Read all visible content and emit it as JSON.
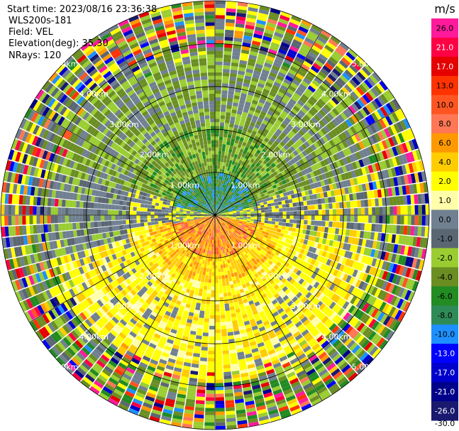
{
  "header": {
    "start_time": "Start time: 2023/08/16 23:36:38",
    "instrument": "WLS200s-181",
    "field": "Field: VEL",
    "elevation": "Elevation(deg): 35.30",
    "nrays": "NRays: 120"
  },
  "colorbar": {
    "unit": "m/s",
    "bins": [
      {
        "low": "26.0",
        "color": "#ff1a9c"
      },
      {
        "low": "21.0",
        "color": "#ff0044"
      },
      {
        "low": "17.0",
        "color": "#e60000"
      },
      {
        "low": "13.0",
        "color": "#ff3300"
      },
      {
        "low": "10.0",
        "color": "#ff5522"
      },
      {
        "low": "8.0",
        "color": "#ff7755"
      },
      {
        "low": "6.0",
        "color": "#ff9900"
      },
      {
        "low": "4.0",
        "color": "#ffcc00"
      },
      {
        "low": "2.0",
        "color": "#ffff00"
      },
      {
        "low": "1.0",
        "color": "#ffffaa"
      },
      {
        "low": "0.0",
        "color": "#708090"
      },
      {
        "low": "-1.0",
        "color": "#5b6673"
      },
      {
        "low": "-2.0",
        "color": "#9acd32"
      },
      {
        "low": "-4.0",
        "color": "#6b8e23"
      },
      {
        "low": "-6.0",
        "color": "#228b22"
      },
      {
        "low": "-8.0",
        "color": "#2e8b57"
      },
      {
        "low": "-10.0",
        "color": "#1e90ff"
      },
      {
        "low": "-13.0",
        "color": "#0000ff"
      },
      {
        "low": "-17.0",
        "color": "#0000cd"
      },
      {
        "low": "-21.0",
        "color": "#00008b"
      },
      {
        "low": "-26.0",
        "color": "#191970"
      }
    ],
    "bottom_label": "-30.0"
  },
  "chart_data": {
    "type": "heatmap",
    "projection": "polar-ppi",
    "field": "VEL",
    "units": "m/s",
    "n_rays": 120,
    "max_range_km": 5.0,
    "range_rings_km": [
      1.0,
      2.0,
      3.0,
      4.0,
      5.0
    ],
    "ring_labels": [
      "1.00km",
      "2.00km",
      "3.00km",
      "4.00km",
      "5.00km"
    ],
    "spoke_spacing_deg": 30,
    "value_range": [
      -30.0,
      30.0
    ],
    "pattern_description_values": {
      "near_north_quadrant": -6.0,
      "near_south_quadrant": 8.0,
      "mid_south_band": 2.0,
      "mid_north_band": -3.0,
      "east_west_sides": 0.0
    }
  }
}
